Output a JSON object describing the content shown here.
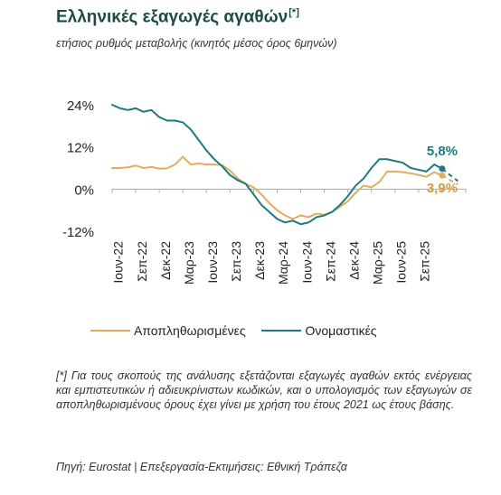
{
  "chart_data": {
    "type": "line",
    "title": "Ελληνικές εξαγωγές αγαθών",
    "title_note": "[*]",
    "subtitle": "ετήσιος ρυθμός μεταβολής (κινητός μέσος όρος 6μηνών)",
    "yticks": [
      "24%",
      "12%",
      "0%",
      "-12%"
    ],
    "ylim": [
      -12,
      24
    ],
    "x_labels": [
      "Ιουν-22",
      "Σεπ-22",
      "Δεκ-22",
      "Μαρ-23",
      "Ιουν-23",
      "Σεπ-23",
      "Δεκ-23",
      "Μαρ-24",
      "Ιουν-24",
      "Σεπ-24",
      "Δεκ-24",
      "Μαρ-25",
      "Ιουν-25",
      "Σεπ-25"
    ],
    "series": [
      {
        "name": "Αποπληθωρισμένες",
        "color": "#e3ab60",
        "values": [
          6.0,
          6.0,
          6.2,
          6.7,
          6.0,
          6.3,
          5.8,
          5.9,
          7.0,
          9.2,
          7.0,
          7.3,
          7.0,
          7.0,
          6.8,
          5.3,
          3.0,
          1.5,
          0.5,
          -1.5,
          -4.0,
          -6.0,
          -7.5,
          -8.5,
          -7.5,
          -8.0,
          -7.0,
          -7.3,
          -6.5,
          -5.0,
          -3.5,
          -1.0,
          1.0,
          0.5,
          2.0,
          5.0,
          5.0,
          4.8,
          4.5,
          4.0,
          3.5,
          4.8,
          3.9
        ],
        "forecast": [
          3.9,
          2.6,
          1.3
        ]
      },
      {
        "name": "Ονομαστικές",
        "color": "#1c7a80",
        "values": [
          24.0,
          23.0,
          22.5,
          23.0,
          22.0,
          22.5,
          20.5,
          19.5,
          19.5,
          19.0,
          17.0,
          14.0,
          11.0,
          8.5,
          6.5,
          4.0,
          2.5,
          1.5,
          -1.5,
          -4.5,
          -6.5,
          -8.5,
          -9.5,
          -9.0,
          -10.0,
          -9.5,
          -8.0,
          -7.5,
          -6.5,
          -4.5,
          -2.0,
          1.0,
          3.0,
          6.0,
          8.5,
          8.5,
          8.0,
          7.5,
          6.0,
          5.5,
          5.0,
          7.0,
          5.8
        ],
        "forecast": [
          5.8,
          4.0,
          2.3
        ]
      }
    ],
    "annotations": [
      {
        "text": "5,8%",
        "series": 1,
        "color": "#1c7a80"
      },
      {
        "text": "3,9%",
        "series": 0,
        "color": "#d69a43"
      }
    ],
    "grid": false,
    "legend_position": "bottom"
  },
  "footnote": "[*] Για τους σκοπούς της ανάλυσης εξετάζονται εξαγωγές αγαθών εκτός ενέργειας και εμπιστευτικών ή αδιευκρίνιστων κωδικών, και ο υπολογισμός των εξαγωγών σε αποπληθωρισμένους όρους έχει γίνει με χρήση του έτους 2021 ως έτους βάσης.",
  "source": "Πηγή: Eurostat | Επεξεργασία-Εκτιμήσεις: Εθνική Τράπεζα"
}
